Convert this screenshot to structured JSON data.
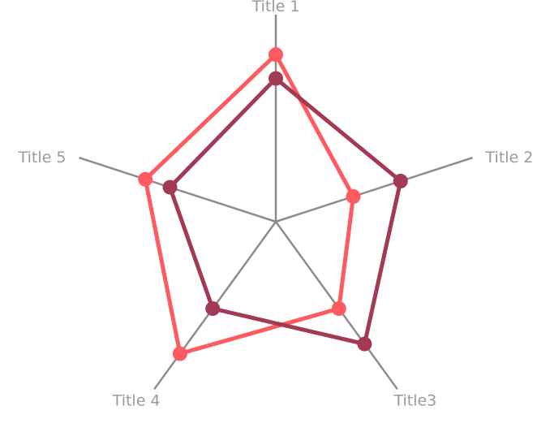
{
  "chart_data": {
    "type": "radar",
    "categories": [
      "Title 1",
      "Title 2",
      "Title3",
      "Title 4",
      "Title 5"
    ],
    "range": [
      0,
      100
    ],
    "grid": false,
    "legend": "none",
    "series": [
      {
        "color": "#ff5a5f",
        "values": [
          84,
          41,
          54,
          82,
          69
        ]
      },
      {
        "color": "#a33a54",
        "values": [
          72,
          66,
          76,
          54,
          56
        ]
      }
    ]
  }
}
